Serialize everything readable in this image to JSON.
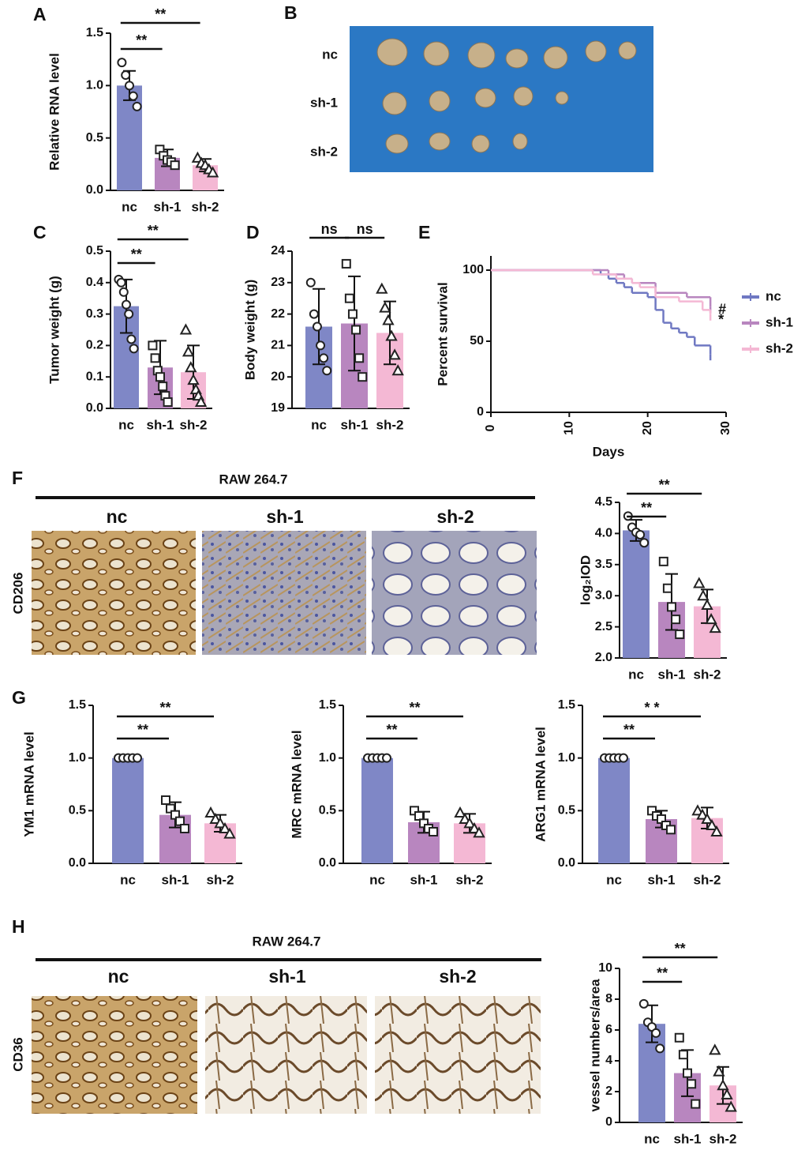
{
  "chart_data": [
    {
      "type": "bar",
      "panel": "A",
      "y_label": "Relative RNA level",
      "categories": [
        "nc",
        "sh-1",
        "sh-2"
      ],
      "colors": [
        "#7f87c6",
        "#b886bf",
        "#f4b8d4"
      ],
      "markers": [
        "circle",
        "square",
        "triangle"
      ],
      "values": [
        1.0,
        0.31,
        0.24
      ],
      "errors": [
        0.14,
        0.08,
        0.06
      ],
      "points": [
        [
          1.22,
          1.1,
          1.0,
          0.9,
          0.8
        ],
        [
          0.39,
          0.33,
          0.29,
          0.27,
          0.24
        ],
        [
          0.31,
          0.26,
          0.24,
          0.2,
          0.17
        ]
      ],
      "ylim": [
        0,
        1.5
      ],
      "yticks": [
        {
          "value": 0,
          "label": "0.0"
        },
        0.5,
        {
          "value": 1,
          "label": "1.0"
        },
        1.5
      ],
      "annotations": [
        {
          "label": "**",
          "pair": [
            "nc",
            "sh-1"
          ]
        },
        {
          "label": "**",
          "pair": [
            "nc",
            "sh-2"
          ]
        }
      ]
    },
    {
      "type": "bar",
      "panel": "C",
      "y_label": "Tumor weight (g)",
      "categories": [
        "nc",
        "sh-1",
        "sh-2"
      ],
      "colors": [
        "#7f87c6",
        "#b886bf",
        "#f4b8d4"
      ],
      "markers": [
        "circle",
        "square",
        "triangle"
      ],
      "values": [
        0.325,
        0.13,
        0.115
      ],
      "errors": [
        0.085,
        0.085,
        0.085
      ],
      "points": [
        [
          0.41,
          0.4,
          0.37,
          0.33,
          0.3,
          0.22,
          0.19
        ],
        [
          0.2,
          0.16,
          0.12,
          0.1,
          0.07,
          0.04,
          0.02
        ],
        [
          0.25,
          0.18,
          0.13,
          0.09,
          0.06,
          0.04,
          0.02
        ]
      ],
      "ylim": [
        0,
        0.5
      ],
      "yticks": [
        {
          "value": 0,
          "label": "0.0"
        },
        0.1,
        0.2,
        0.3,
        0.4,
        0.5
      ],
      "annotations": [
        {
          "label": "**",
          "pair": [
            "nc",
            "sh-1"
          ]
        },
        {
          "label": "**",
          "pair": [
            "nc",
            "sh-2"
          ]
        }
      ]
    },
    {
      "type": "bar",
      "panel": "D",
      "y_label": "Body weight (g)",
      "categories": [
        "nc",
        "sh-1",
        "sh-2"
      ],
      "colors": [
        "#7f87c6",
        "#b886bf",
        "#f4b8d4"
      ],
      "markers": [
        "circle",
        "square",
        "triangle"
      ],
      "values": [
        21.6,
        21.7,
        21.4
      ],
      "errors": [
        1.2,
        1.5,
        1.0
      ],
      "points": [
        [
          23.0,
          22.0,
          21.6,
          21.0,
          20.6,
          20.2
        ],
        [
          23.6,
          22.5,
          22.0,
          21.5,
          20.6,
          20.0
        ],
        [
          22.8,
          22.2,
          21.8,
          21.3,
          20.7,
          20.2
        ]
      ],
      "ylim": [
        19,
        24
      ],
      "yticks": [
        19,
        20,
        21,
        22,
        23,
        24
      ],
      "annotations": [
        {
          "label": "ns",
          "pair": [
            "nc",
            "sh-1"
          ]
        },
        {
          "label": "ns",
          "pair": [
            "sh-1",
            "sh-2"
          ]
        }
      ]
    },
    {
      "type": "survival",
      "panel": "E",
      "x_label": "Days",
      "y_label": "Percent survival",
      "xlim": [
        0,
        30
      ],
      "xticks": [
        0,
        10,
        20,
        30
      ],
      "ylim": [
        0,
        110
      ],
      "yticks": [
        0,
        50,
        100
      ],
      "series": [
        {
          "name": "nc",
          "color": "#6f78c2",
          "x": [
            0,
            14,
            15,
            16,
            17,
            18,
            20,
            21,
            22,
            23,
            24,
            25,
            26,
            28
          ],
          "values": [
            100,
            97,
            94,
            91,
            88,
            84,
            81,
            72,
            63,
            59,
            56,
            53,
            47,
            41
          ]
        },
        {
          "name": "sh-1",
          "color": "#b886bf",
          "x": [
            0,
            15,
            17,
            18,
            21,
            25,
            28
          ],
          "values": [
            100,
            97,
            94,
            91,
            84,
            81,
            74
          ]
        },
        {
          "name": "sh-2",
          "color": "#f4b8d4",
          "x": [
            0,
            13,
            16,
            18,
            19,
            21,
            24,
            27,
            28
          ],
          "values": [
            100,
            97,
            94,
            91,
            88,
            81,
            78,
            72,
            69
          ]
        }
      ],
      "annotations": [
        {
          "label": "#",
          "series": "sh-1"
        },
        {
          "label": "*",
          "series": "sh-2"
        }
      ]
    },
    {
      "type": "bar",
      "y_label": "log₂IOD",
      "categories": [
        "nc",
        "sh-1",
        "sh-2"
      ],
      "colors": [
        "#7f87c6",
        "#b886bf",
        "#f4b8d4"
      ],
      "markers": [
        "circle",
        "square",
        "triangle"
      ],
      "values": [
        4.05,
        2.9,
        2.83
      ],
      "errors": [
        0.17,
        0.45,
        0.27
      ],
      "points": [
        [
          4.28,
          4.1,
          4.02,
          3.98,
          3.85
        ],
        [
          3.55,
          3.12,
          2.82,
          2.62,
          2.38
        ],
        [
          3.2,
          3.0,
          2.85,
          2.62,
          2.48
        ]
      ],
      "ylim": [
        2,
        4.5
      ],
      "yticks": [
        {
          "value": 2,
          "label": "2.0"
        },
        2.5,
        {
          "value": 3,
          "label": "3.0"
        },
        3.5,
        {
          "value": 4,
          "label": "4.0"
        },
        4.5
      ],
      "annotations": [
        {
          "label": "**",
          "pair": [
            "nc",
            "sh-1"
          ]
        },
        {
          "label": "**",
          "pair": [
            "nc",
            "sh-2"
          ]
        }
      ]
    },
    {
      "type": "bar",
      "panel": "G",
      "y_label": "YM1 mRNA level",
      "categories": [
        "nc",
        "sh-1",
        "sh-2"
      ],
      "colors": [
        "#7f87c6",
        "#b886bf",
        "#f4b8d4"
      ],
      "markers": [
        "circle",
        "square",
        "triangle"
      ],
      "values": [
        1.0,
        0.46,
        0.38
      ],
      "errors": [
        0,
        0.12,
        0.08
      ],
      "points": [
        [
          1,
          1,
          1,
          1,
          1
        ],
        [
          0.6,
          0.52,
          0.46,
          0.4,
          0.33
        ],
        [
          0.48,
          0.42,
          0.38,
          0.33,
          0.28
        ]
      ],
      "ylim": [
        0,
        1.5
      ],
      "yticks": [
        {
          "value": 0,
          "label": "0.0"
        },
        0.5,
        {
          "value": 1,
          "label": "1.0"
        },
        1.5
      ],
      "annotations": [
        {
          "label": "**",
          "pair": [
            "nc",
            "sh-1"
          ]
        },
        {
          "label": "**",
          "pair": [
            "nc",
            "sh-2"
          ]
        }
      ]
    },
    {
      "type": "bar",
      "y_label": "MRC mRNA level",
      "categories": [
        "nc",
        "sh-1",
        "sh-2"
      ],
      "colors": [
        "#7f87c6",
        "#b886bf",
        "#f4b8d4"
      ],
      "markers": [
        "circle",
        "square",
        "triangle"
      ],
      "values": [
        1.0,
        0.39,
        0.38
      ],
      "errors": [
        0,
        0.1,
        0.09
      ],
      "points": [
        [
          1,
          1,
          1,
          1,
          1
        ],
        [
          0.5,
          0.45,
          0.38,
          0.33,
          0.3
        ],
        [
          0.48,
          0.42,
          0.38,
          0.33,
          0.29
        ]
      ],
      "ylim": [
        0,
        1.5
      ],
      "yticks": [
        {
          "value": 0,
          "label": "0.0"
        },
        0.5,
        {
          "value": 1,
          "label": "1.0"
        },
        1.5
      ],
      "annotations": [
        {
          "label": "**",
          "pair": [
            "nc",
            "sh-1"
          ]
        },
        {
          "label": "**",
          "pair": [
            "nc",
            "sh-2"
          ]
        }
      ]
    },
    {
      "type": "bar",
      "y_label": "ARG1 mRNA level",
      "categories": [
        "nc",
        "sh-1",
        "sh-2"
      ],
      "colors": [
        "#7f87c6",
        "#b886bf",
        "#f4b8d4"
      ],
      "markers": [
        "circle",
        "square",
        "triangle"
      ],
      "values": [
        1.0,
        0.42,
        0.43
      ],
      "errors": [
        0,
        0.08,
        0.1
      ],
      "points": [
        [
          1,
          1,
          1,
          1,
          1
        ],
        [
          0.5,
          0.45,
          0.42,
          0.36,
          0.32
        ],
        [
          0.5,
          0.46,
          0.42,
          0.36,
          0.3
        ]
      ],
      "ylim": [
        0,
        1.5
      ],
      "yticks": [
        {
          "value": 0,
          "label": "0.0"
        },
        0.5,
        {
          "value": 1,
          "label": "1.0"
        },
        1.5
      ],
      "annotations": [
        {
          "label": "**",
          "pair": [
            "nc",
            "sh-1"
          ]
        },
        {
          "label": "* *",
          "pair": [
            "nc",
            "sh-2"
          ]
        }
      ]
    },
    {
      "type": "bar",
      "y_label": "vessel numbers/area",
      "categories": [
        "nc",
        "sh-1",
        "sh-2"
      ],
      "colors": [
        "#7f87c6",
        "#b886bf",
        "#f4b8d4"
      ],
      "markers": [
        "circle",
        "square",
        "triangle"
      ],
      "values": [
        6.4,
        3.2,
        2.4
      ],
      "errors": [
        1.2,
        1.5,
        1.2
      ],
      "points": [
        [
          7.7,
          6.5,
          6.2,
          5.8,
          4.8
        ],
        [
          5.5,
          4.4,
          3.2,
          2.5,
          1.2
        ],
        [
          4.7,
          3.3,
          2.4,
          1.8,
          1.0
        ]
      ],
      "ylim": [
        0,
        10
      ],
      "yticks": [
        0,
        2,
        4,
        6,
        8,
        10
      ],
      "annotations": [
        {
          "label": "**",
          "pair": [
            "nc",
            "sh-1"
          ]
        },
        {
          "label": "**",
          "pair": [
            "nc",
            "sh-2"
          ]
        }
      ]
    }
  ],
  "image_panels": [
    {
      "panel": "B",
      "row_labels": [
        "nc",
        "sh-1",
        "sh-2"
      ]
    },
    {
      "panel": "F",
      "title": "RAW 264.7",
      "stain": "CD206",
      "column_labels": [
        "nc",
        "sh-1",
        "sh-2"
      ]
    },
    {
      "panel": "H",
      "title": "RAW 264.7",
      "stain": "CD36",
      "column_labels": [
        "nc",
        "sh-1",
        "sh-2"
      ]
    }
  ]
}
